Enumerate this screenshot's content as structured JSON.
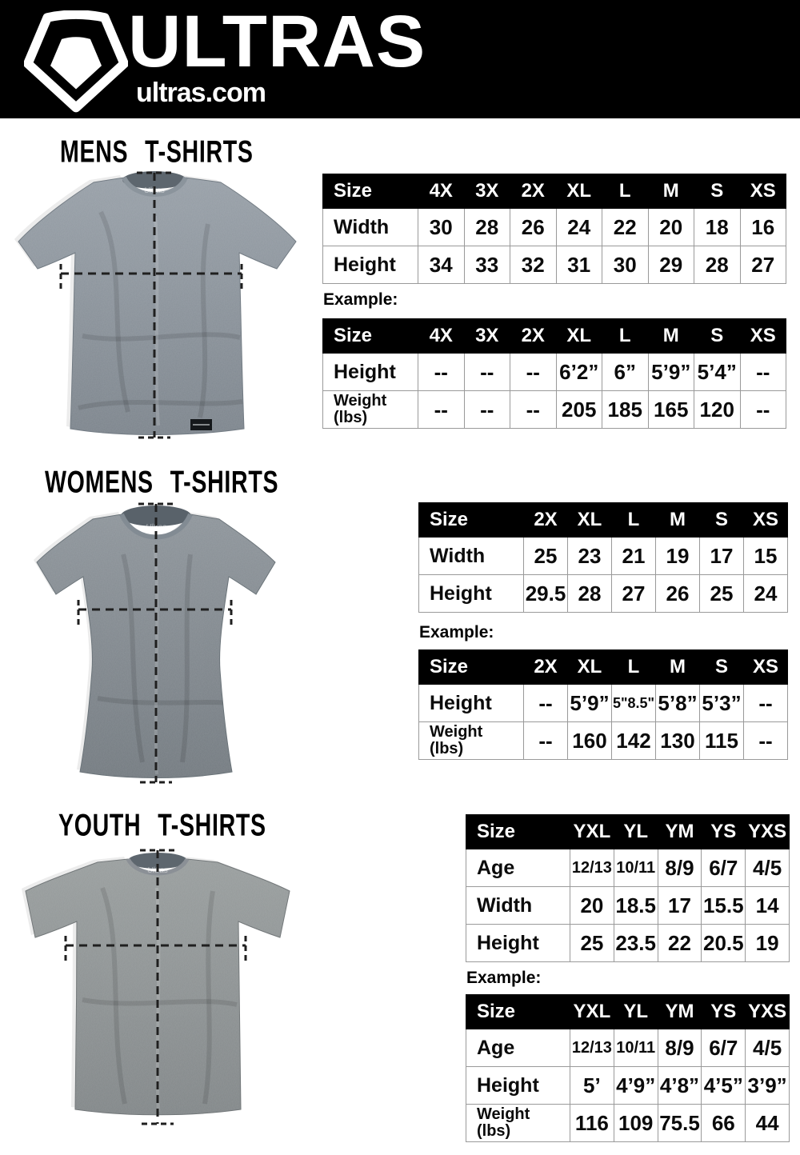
{
  "colors": {
    "header_bg": "#000000",
    "header_fg": "#ffffff",
    "table_header_bg": "#000000",
    "table_header_fg": "#ffffff",
    "table_border": "#9a9a9a",
    "shirt_gray": "#8a929a"
  },
  "header": {
    "brand": "ULTRAS",
    "site": "ultras.com",
    "logo": "ultras-crest-icon"
  },
  "sections": [
    {
      "title": "MENS T-SHIRTS",
      "image": "mens-gray-tshirt-flat-lay",
      "example_label": "Example:",
      "size_table": {
        "header": [
          "Size",
          "4X",
          "3X",
          "2X",
          "XL",
          "L",
          "M",
          "S",
          "XS"
        ],
        "rows": [
          {
            "label": "Width",
            "values": [
              "30",
              "28",
              "26",
              "24",
              "22",
              "20",
              "18",
              "16"
            ]
          },
          {
            "label": "Height",
            "values": [
              "34",
              "33",
              "32",
              "31",
              "30",
              "29",
              "28",
              "27"
            ]
          }
        ]
      },
      "example_table": {
        "header": [
          "Size",
          "4X",
          "3X",
          "2X",
          "XL",
          "L",
          "M",
          "S",
          "XS"
        ],
        "rows": [
          {
            "label": "Height",
            "values": [
              "--",
              "--",
              "--",
              "6’2”",
              "6”",
              "5’9”",
              "5’4”",
              "--"
            ]
          },
          {
            "label": "Weight",
            "label2": "(lbs)",
            "values": [
              "--",
              "--",
              "--",
              "205",
              "185",
              "165",
              "120",
              "--"
            ]
          }
        ]
      }
    },
    {
      "title": "WOMENS T-SHIRTS",
      "image": "womens-gray-tshirt-flat-lay",
      "example_label": "Example:",
      "size_table": {
        "header": [
          "Size",
          "2X",
          "XL",
          "L",
          "M",
          "S",
          "XS"
        ],
        "rows": [
          {
            "label": "Width",
            "values": [
              "25",
              "23",
              "21",
              "19",
              "17",
              "15"
            ]
          },
          {
            "label": "Height",
            "values": [
              "29.5",
              "28",
              "27",
              "26",
              "25",
              "24"
            ]
          }
        ]
      },
      "example_table": {
        "header": [
          "Size",
          "2X",
          "XL",
          "L",
          "M",
          "S",
          "XS"
        ],
        "rows": [
          {
            "label": "Height",
            "values": [
              "--",
              "5’9”",
              "5\"8.5\"",
              "5’8”",
              "5’3”",
              "--"
            ]
          },
          {
            "label": "Weight",
            "label2": "(lbs)",
            "values": [
              "--",
              "160",
              "142",
              "130",
              "115",
              "--"
            ]
          }
        ]
      }
    },
    {
      "title": "YOUTH T-SHIRTS",
      "image": "youth-gray-tshirt-flat-lay",
      "example_label": "Example:",
      "size_table": {
        "header": [
          "Size",
          "YXL",
          "YL",
          "YM",
          "YS",
          "YXS"
        ],
        "rows": [
          {
            "label": "Age",
            "values": [
              "12/13",
              "10/11",
              "8/9",
              "6/7",
              "4/5"
            ]
          },
          {
            "label": "Width",
            "values": [
              "20",
              "18.5",
              "17",
              "15.5",
              "14"
            ]
          },
          {
            "label": "Height",
            "values": [
              "25",
              "23.5",
              "22",
              "20.5",
              "19"
            ]
          }
        ]
      },
      "example_table": {
        "header": [
          "Size",
          "YXL",
          "YL",
          "YM",
          "YS",
          "YXS"
        ],
        "rows": [
          {
            "label": "Age",
            "values": [
              "12/13",
              "10/11",
              "8/9",
              "6/7",
              "4/5"
            ]
          },
          {
            "label": "Height",
            "values": [
              "5’",
              "4’9”",
              "4’8”",
              "4’5”",
              "3’9”"
            ]
          },
          {
            "label": "Weight",
            "label2": "(lbs)",
            "values": [
              "116",
              "109",
              "75.5",
              "66",
              "44"
            ]
          }
        ]
      }
    }
  ]
}
